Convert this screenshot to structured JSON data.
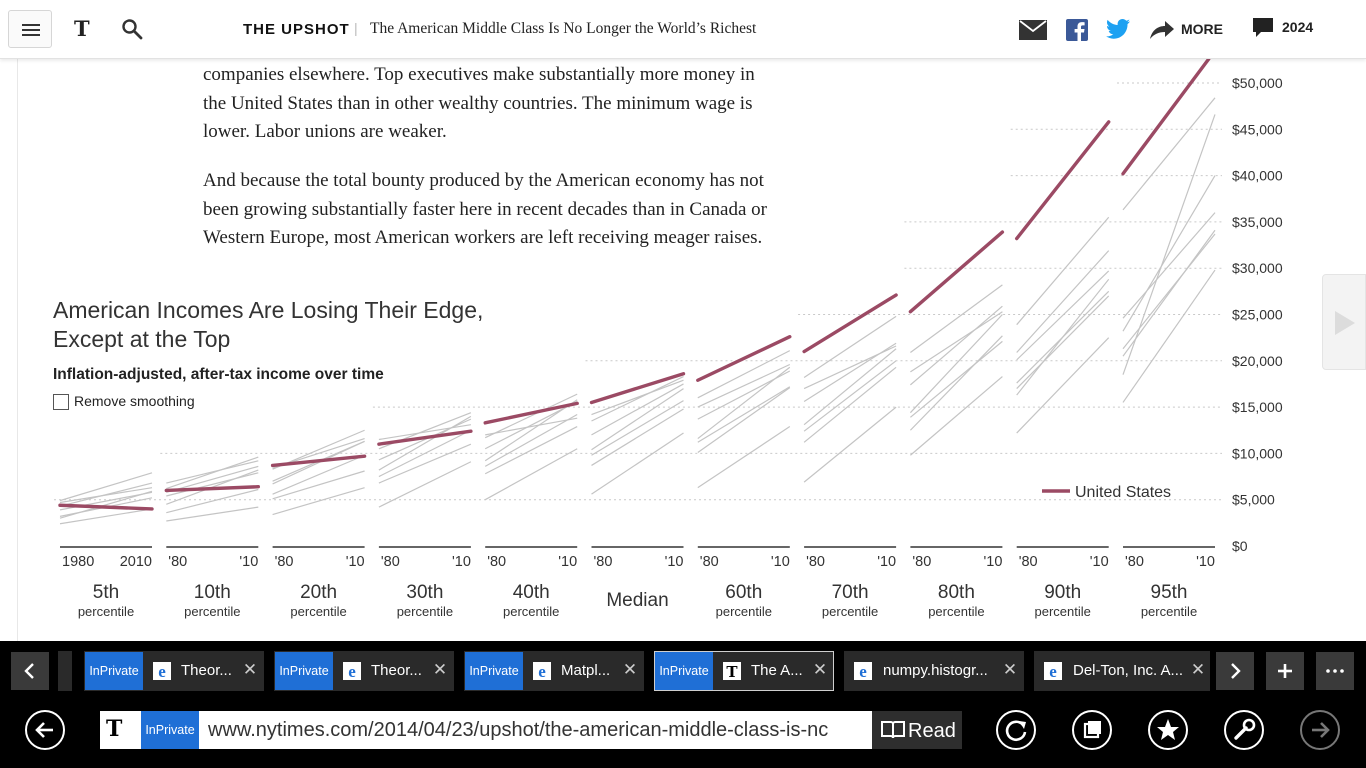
{
  "header": {
    "menu_icon": "hamburger-icon",
    "logo": "T",
    "search_icon": "search-icon",
    "section": "THE UPSHOT",
    "separator": "|",
    "headline": "The American Middle Class Is No Longer the World’s Richest",
    "more_label": "MORE",
    "comment_count": "2024"
  },
  "article": {
    "para1_lines": [
      "companies elsewhere. Top executives make substantially more money in",
      "the United States than in other wealthy countries. The minimum wage is",
      "lower. Labor unions are weaker."
    ],
    "para2_lines": [
      "And because the total bounty produced by the American economy has not",
      "been growing substantially faster here in recent decades than in Canada or",
      "Western Europe, most American workers are left receiving meager raises."
    ]
  },
  "chart_ui": {
    "title_line1": "American Incomes Are Losing Their Edge,",
    "title_line2": "Except at the Top",
    "subtitle": "Inflation-adjusted, after-tax income over time",
    "smoothing_label": "Remove smoothing",
    "smoothing_checked": false
  },
  "chart_data": {
    "type": "line",
    "colors": {
      "us": "#9b4a64",
      "other": "#c4c4c4"
    },
    "yticks": [
      0,
      5000,
      10000,
      15000,
      20000,
      25000,
      30000,
      35000,
      40000,
      45000,
      50000
    ],
    "ytick_labels": [
      "$0",
      "$5,000",
      "$10,000",
      "$15,000",
      "$20,000",
      "$25,000",
      "$30,000",
      "$35,000",
      "$40,000",
      "$45,000",
      "$50,000"
    ],
    "ylim": [
      0,
      52000
    ],
    "legend": "United States",
    "legend_position": "bottom-right",
    "panels": [
      {
        "name": "5th",
        "sub": "percentile",
        "x_start": "1980",
        "x_end": "2010",
        "us": [
          4400,
          4000
        ]
      },
      {
        "name": "10th",
        "sub": "percentile",
        "x_start": "'80",
        "x_end": "'10",
        "us": [
          6000,
          6400
        ]
      },
      {
        "name": "20th",
        "sub": "percentile",
        "x_start": "'80",
        "x_end": "'10",
        "us": [
          8700,
          9700
        ]
      },
      {
        "name": "30th",
        "sub": "percentile",
        "x_start": "'80",
        "x_end": "'10",
        "us": [
          11000,
          12400
        ]
      },
      {
        "name": "40th",
        "sub": "percentile",
        "x_start": "'80",
        "x_end": "'10",
        "us": [
          13300,
          15400
        ]
      },
      {
        "name": "Median",
        "sub": "",
        "x_start": "'80",
        "x_end": "'10",
        "us": [
          15500,
          18600
        ]
      },
      {
        "name": "60th",
        "sub": "percentile",
        "x_start": "'80",
        "x_end": "'10",
        "us": [
          17900,
          22600
        ]
      },
      {
        "name": "70th",
        "sub": "percentile",
        "x_start": "'80",
        "x_end": "'10",
        "us": [
          21000,
          27100
        ]
      },
      {
        "name": "80th",
        "sub": "percentile",
        "x_start": "'80",
        "x_end": "'10",
        "us": [
          25300,
          33900
        ]
      },
      {
        "name": "90th",
        "sub": "percentile",
        "x_start": "'80",
        "x_end": "'10",
        "us": [
          33200,
          45800
        ]
      },
      {
        "name": "95th",
        "sub": "percentile",
        "x_start": "'80",
        "x_end": "'10",
        "us": [
          40200,
          53500
        ]
      }
    ],
    "other_countries": [
      [
        [
          4900,
          7900
        ],
        [
          4700,
          6300
        ],
        [
          3900,
          5800
        ],
        [
          4300,
          6800
        ],
        [
          3000,
          5900
        ],
        [
          2400,
          4000
        ],
        [
          3200,
          5200
        ]
      ],
      [
        [
          6200,
          9600
        ],
        [
          5800,
          8600
        ],
        [
          4500,
          8200
        ],
        [
          3600,
          6100
        ],
        [
          5400,
          7900
        ],
        [
          2700,
          4200
        ],
        [
          6800,
          9200
        ]
      ],
      [
        [
          8300,
          12500
        ],
        [
          7000,
          11300
        ],
        [
          5600,
          9800
        ],
        [
          6700,
          11300
        ],
        [
          3400,
          6300
        ],
        [
          8400,
          11600
        ],
        [
          5100,
          8100
        ]
      ],
      [
        [
          10500,
          14400
        ],
        [
          9300,
          13700
        ],
        [
          7500,
          12500
        ],
        [
          8200,
          14000
        ],
        [
          4200,
          9100
        ],
        [
          6800,
          11000
        ],
        [
          11500,
          13100
        ]
      ],
      [
        [
          11700,
          16400
        ],
        [
          10500,
          15600
        ],
        [
          8600,
          14200
        ],
        [
          9200,
          15800
        ],
        [
          5000,
          10500
        ],
        [
          12000,
          13800
        ],
        [
          7800,
          12900
        ]
      ],
      [
        [
          13500,
          18300
        ],
        [
          12000,
          17500
        ],
        [
          9800,
          15700
        ],
        [
          10400,
          17000
        ],
        [
          5600,
          12200
        ],
        [
          14200,
          17900
        ],
        [
          8700,
          14800
        ]
      ],
      [
        [
          15000,
          19600
        ],
        [
          13700,
          18900
        ],
        [
          11200,
          17200
        ],
        [
          11600,
          19300
        ],
        [
          6300,
          12900
        ],
        [
          16000,
          21100
        ],
        [
          10100,
          17100
        ]
      ],
      [
        [
          17000,
          21600
        ],
        [
          15600,
          21900
        ],
        [
          12400,
          20000
        ],
        [
          13100,
          21300
        ],
        [
          6900,
          15000
        ],
        [
          18200,
          24800
        ],
        [
          11200,
          19300
        ]
      ],
      [
        [
          18800,
          25300
        ],
        [
          17400,
          25900
        ],
        [
          13900,
          22100
        ],
        [
          14400,
          25000
        ],
        [
          9800,
          18300
        ],
        [
          20900,
          28200
        ],
        [
          12500,
          22700
        ]
      ],
      [
        [
          20900,
          31900
        ],
        [
          20100,
          29700
        ],
        [
          17000,
          27000
        ],
        [
          16300,
          28800
        ],
        [
          12200,
          22500
        ],
        [
          23900,
          35500
        ],
        [
          17600,
          27500
        ]
      ],
      [
        [
          24600,
          36000
        ],
        [
          23200,
          40000
        ],
        [
          20500,
          34100
        ],
        [
          21300,
          33700
        ],
        [
          15500,
          29800
        ],
        [
          36300,
          48400
        ],
        [
          18500,
          46600
        ]
      ]
    ]
  },
  "tabs": [
    {
      "private": "InPrivate",
      "title": "Theor...",
      "active": false
    },
    {
      "private": "InPrivate",
      "title": "Theor...",
      "active": false
    },
    {
      "private": "InPrivate",
      "title": "Matpl...",
      "active": false
    },
    {
      "private": "InPrivate",
      "title": "The A...",
      "active": true
    },
    {
      "private": "",
      "title": "numpy.histogr...",
      "active": false
    },
    {
      "private": "",
      "title": "Del-Ton, Inc. A...",
      "active": false
    }
  ],
  "addressbar": {
    "inprivate": "InPrivate",
    "url": "www.nytimes.com/2014/04/23/upshot/the-american-middle-class-is-nc",
    "read_label": "Read"
  }
}
